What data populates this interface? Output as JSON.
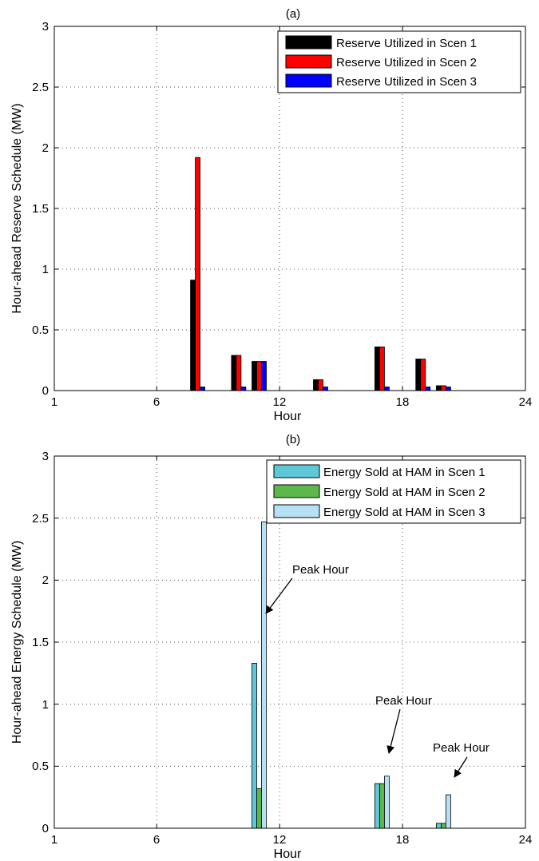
{
  "chart_data": [
    {
      "id": "a",
      "type": "bar",
      "title": "(a)",
      "xlabel": "Hour",
      "ylabel": "Hour-ahead Reserve Schedule (MW)",
      "xlim": [
        1,
        24
      ],
      "ylim": [
        0,
        3
      ],
      "xticks": [
        "1",
        "6",
        "12",
        "18",
        "24"
      ],
      "yticks": [
        "0",
        "0.5",
        "1",
        "1.5",
        "2",
        "2.5",
        "3"
      ],
      "grid": true,
      "legend_position": "top-right",
      "series": [
        {
          "name": "Reserve Utilized in Scen 1",
          "color": "#000000",
          "points": [
            [
              8,
              0.91
            ],
            [
              10,
              0.29
            ],
            [
              11,
              0.24
            ],
            [
              14,
              0.09
            ],
            [
              17,
              0.36
            ],
            [
              19,
              0.26
            ],
            [
              20,
              0.04
            ]
          ]
        },
        {
          "name": "Reserve Utilized in Scen 2",
          "color": "#ff0000",
          "points": [
            [
              8,
              1.92
            ],
            [
              10,
              0.29
            ],
            [
              11,
              0.24
            ],
            [
              14,
              0.09
            ],
            [
              17,
              0.36
            ],
            [
              19,
              0.26
            ],
            [
              20,
              0.04
            ]
          ]
        },
        {
          "name": "Reserve Utilized in Scen 3",
          "color": "#0000ff",
          "points": [
            [
              8,
              0.03
            ],
            [
              10,
              0.03
            ],
            [
              11,
              0.24
            ],
            [
              14,
              0.03
            ],
            [
              17,
              0.03
            ],
            [
              19,
              0.03
            ],
            [
              20,
              0.03
            ]
          ]
        }
      ],
      "annotations": []
    },
    {
      "id": "b",
      "type": "bar",
      "title": "(b)",
      "xlabel": "Hour",
      "ylabel": "Hour-ahead Energy Schedule (MW)",
      "xlim": [
        1,
        24
      ],
      "ylim": [
        0,
        3
      ],
      "xticks": [
        "1",
        "6",
        "12",
        "18",
        "24"
      ],
      "yticks": [
        "0",
        "0.5",
        "1",
        "1.5",
        "2",
        "2.5",
        "3"
      ],
      "grid": true,
      "legend_position": "top-right",
      "series": [
        {
          "name": "Energy Sold at HAM in Scen 1",
          "color": "#5ec8d8",
          "points": [
            [
              11,
              1.33
            ],
            [
              17,
              0.36
            ],
            [
              20,
              0.04
            ]
          ]
        },
        {
          "name": "Energy Sold at HAM in Scen 2",
          "color": "#5cb84a",
          "points": [
            [
              11,
              0.32
            ],
            [
              17,
              0.36
            ],
            [
              20,
              0.04
            ]
          ]
        },
        {
          "name": "Energy Sold at HAM in Scen 3",
          "color": "#b6e0f4",
          "points": [
            [
              11,
              2.47
            ],
            [
              17,
              0.42
            ],
            [
              20,
              0.27
            ]
          ]
        }
      ],
      "annotations": [
        {
          "text": "Peak Hour",
          "target": [
            11,
            2.47
          ]
        },
        {
          "text": "Peak Hour",
          "target": [
            17,
            0.42
          ]
        },
        {
          "text": "Peak Hour",
          "target": [
            20,
            0.27
          ]
        }
      ]
    }
  ]
}
